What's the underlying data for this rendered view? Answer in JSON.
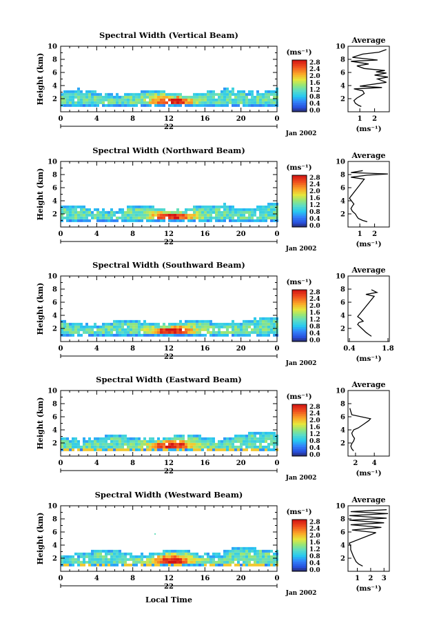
{
  "chart_data": [
    {
      "type": "heatmap",
      "title": "Spectral Width (Vertical Beam)",
      "ylabel": "Height (km)",
      "xticks": [
        "0",
        "4",
        "8",
        "12",
        "16",
        "20",
        "0"
      ],
      "yticks": [
        "2",
        "4",
        "6",
        "8",
        "10"
      ],
      "ylim": [
        0,
        10
      ],
      "date_day": "22",
      "date_label": "Jan 2002",
      "colorbar": {
        "unit": "(ms⁻¹)",
        "ticks": [
          "0.0",
          "0.4",
          "0.8",
          "1.2",
          "1.6",
          "2.0",
          "2.4",
          "2.8"
        ]
      },
      "profile": {
        "title": "Average",
        "xlabel": "(ms⁻¹)",
        "xticks": [
          "1",
          "2"
        ],
        "yticks": [
          "2",
          "4",
          "6",
          "8",
          "10"
        ],
        "xlim": [
          0.2,
          3.0
        ],
        "points": [
          [
            1.1,
            0.8
          ],
          [
            0.9,
            1.0
          ],
          [
            0.7,
            1.3
          ],
          [
            0.6,
            1.7
          ],
          [
            0.8,
            2.1
          ],
          [
            1.1,
            2.5
          ],
          [
            1.3,
            2.8
          ],
          [
            1.2,
            3.2
          ],
          [
            0.6,
            3.5
          ],
          [
            2.5,
            3.7
          ],
          [
            1.0,
            3.9
          ],
          [
            2.8,
            4.5
          ],
          [
            2.2,
            5.0
          ],
          [
            2.9,
            5.3
          ],
          [
            2.0,
            5.6
          ],
          [
            2.8,
            5.9
          ],
          [
            2.1,
            6.1
          ],
          [
            2.7,
            6.3
          ],
          [
            1.3,
            6.6
          ],
          [
            0.8,
            7.0
          ],
          [
            1.6,
            7.3
          ],
          [
            0.4,
            7.7
          ],
          [
            2.2,
            7.9
          ],
          [
            0.5,
            8.3
          ],
          [
            1.2,
            8.8
          ],
          [
            2.3,
            9.1
          ],
          [
            2.8,
            9.5
          ]
        ]
      }
    },
    {
      "type": "heatmap",
      "title": "Spectral Width (Northward Beam)",
      "ylabel": "Height (km)",
      "xticks": [
        "0",
        "4",
        "8",
        "12",
        "16",
        "20",
        "0"
      ],
      "yticks": [
        "2",
        "4",
        "6",
        "8",
        "10"
      ],
      "ylim": [
        0,
        10
      ],
      "date_day": "22",
      "date_label": "Jan 2002",
      "colorbar": {
        "unit": "(ms⁻¹)",
        "ticks": [
          "0.0",
          "0.4",
          "0.8",
          "1.2",
          "1.6",
          "2.0",
          "2.4",
          "2.8"
        ]
      },
      "profile": {
        "title": "Average",
        "xlabel": "(ms⁻¹)",
        "xticks": [
          "1",
          "2"
        ],
        "yticks": [
          "2",
          "4",
          "6",
          "8",
          "10"
        ],
        "xlim": [
          0.2,
          3.0
        ],
        "points": [
          [
            1.5,
            0.8
          ],
          [
            1.2,
            1.0
          ],
          [
            0.9,
            1.3
          ],
          [
            0.8,
            1.6
          ],
          [
            0.7,
            2.0
          ],
          [
            0.5,
            2.4
          ],
          [
            0.4,
            2.8
          ],
          [
            0.5,
            3.2
          ],
          [
            0.6,
            3.5
          ],
          [
            0.5,
            3.8
          ],
          [
            0.4,
            4.1
          ],
          [
            0.3,
            4.4
          ],
          [
            1.3,
            7.3
          ],
          [
            0.4,
            7.6
          ],
          [
            1.5,
            7.9
          ],
          [
            2.9,
            8.1
          ],
          [
            0.4,
            8.3
          ],
          [
            1.2,
            8.6
          ]
        ]
      }
    },
    {
      "type": "heatmap",
      "title": "Spectral Width (Southward Beam)",
      "ylabel": "Height (km)",
      "xticks": [
        "0",
        "4",
        "8",
        "12",
        "16",
        "20",
        "0"
      ],
      "yticks": [
        "2",
        "4",
        "6",
        "8",
        "10"
      ],
      "ylim": [
        0,
        10
      ],
      "date_day": "22",
      "date_label": "Jan 2002",
      "colorbar": {
        "unit": "(ms⁻¹)",
        "ticks": [
          "0.0",
          "0.4",
          "0.8",
          "1.2",
          "1.6",
          "2.0",
          "2.4",
          "2.8"
        ]
      },
      "profile": {
        "title": "Average",
        "xlabel": "(ms⁻¹)",
        "xticks": [
          "0.4",
          "1.8"
        ],
        "yticks": [
          "2",
          "4",
          "6",
          "8",
          "10"
        ],
        "xlim": [
          0.35,
          1.85
        ],
        "points": [
          [
            1.2,
            0.8
          ],
          [
            1.1,
            1.1
          ],
          [
            1.0,
            1.4
          ],
          [
            0.9,
            1.8
          ],
          [
            0.8,
            2.2
          ],
          [
            0.7,
            2.6
          ],
          [
            0.75,
            2.9
          ],
          [
            0.9,
            3.1
          ],
          [
            0.8,
            3.5
          ],
          [
            0.7,
            3.8
          ],
          [
            1.3,
            6.9
          ],
          [
            1.0,
            7.2
          ],
          [
            1.4,
            7.5
          ],
          [
            1.2,
            7.9
          ]
        ]
      }
    },
    {
      "type": "heatmap",
      "title": "Spectral Width (Eastward Beam)",
      "ylabel": "Height (km)",
      "xticks": [
        "0",
        "4",
        "8",
        "12",
        "16",
        "20",
        "0"
      ],
      "yticks": [
        "2",
        "4",
        "6",
        "8",
        "10"
      ],
      "ylim": [
        0,
        10
      ],
      "date_day": "22",
      "date_label": "Jan 2002",
      "colorbar": {
        "unit": "(ms⁻¹)",
        "ticks": [
          "0.0",
          "0.4",
          "0.8",
          "1.2",
          "1.6",
          "2.0",
          "2.4",
          "2.8"
        ]
      },
      "profile": {
        "title": "Average",
        "xlabel": "(ms⁻¹)",
        "xticks": [
          "2",
          "4"
        ],
        "yticks": [
          "2",
          "4",
          "6",
          "8",
          "10"
        ],
        "xlim": [
          1.2,
          5.6
        ],
        "points": [
          [
            1.8,
            0.8
          ],
          [
            1.6,
            1.1
          ],
          [
            1.5,
            1.5
          ],
          [
            1.6,
            1.9
          ],
          [
            1.8,
            2.3
          ],
          [
            1.9,
            2.7
          ],
          [
            1.7,
            3.1
          ],
          [
            1.6,
            3.5
          ],
          [
            1.8,
            4.0
          ],
          [
            2.3,
            4.3
          ],
          [
            2.9,
            4.9
          ],
          [
            3.4,
            5.4
          ],
          [
            3.6,
            5.7
          ],
          [
            1.6,
            6.3
          ],
          [
            1.5,
            6.8
          ],
          [
            1.4,
            7.3
          ]
        ]
      }
    },
    {
      "type": "heatmap",
      "title": "Spectral Width (Westward Beam)",
      "ylabel": "Height (km)",
      "xlabel": "Local Time",
      "xticks": [
        "0",
        "4",
        "8",
        "12",
        "16",
        "20",
        "0"
      ],
      "yticks": [
        "2",
        "4",
        "6",
        "8",
        "10"
      ],
      "ylim": [
        0,
        10
      ],
      "date_day": "22",
      "date_label": "Jan 2002",
      "colorbar": {
        "unit": "(ms⁻¹)",
        "ticks": [
          "0.0",
          "0.4",
          "0.8",
          "1.2",
          "1.6",
          "2.0",
          "2.4",
          "2.8"
        ]
      },
      "profile": {
        "title": "Average",
        "xlabel": "(ms⁻¹)",
        "xticks": [
          "1",
          "2",
          "3"
        ],
        "yticks": [
          "2",
          "4",
          "6",
          "8",
          "10"
        ],
        "xlim": [
          0.3,
          3.4
        ],
        "points": [
          [
            1.4,
            0.8
          ],
          [
            1.1,
            1.1
          ],
          [
            0.9,
            1.5
          ],
          [
            0.8,
            1.9
          ],
          [
            0.7,
            2.3
          ],
          [
            0.6,
            2.8
          ],
          [
            0.5,
            3.3
          ],
          [
            0.5,
            3.8
          ],
          [
            0.4,
            4.3
          ],
          [
            2.4,
            5.9
          ],
          [
            0.6,
            6.3
          ],
          [
            2.8,
            6.7
          ],
          [
            0.5,
            7.1
          ],
          [
            3.0,
            7.4
          ],
          [
            0.4,
            7.8
          ],
          [
            3.2,
            8.1
          ],
          [
            0.4,
            8.5
          ],
          [
            3.3,
            8.8
          ],
          [
            0.5,
            9.1
          ],
          [
            3.2,
            9.4
          ]
        ]
      }
    }
  ]
}
